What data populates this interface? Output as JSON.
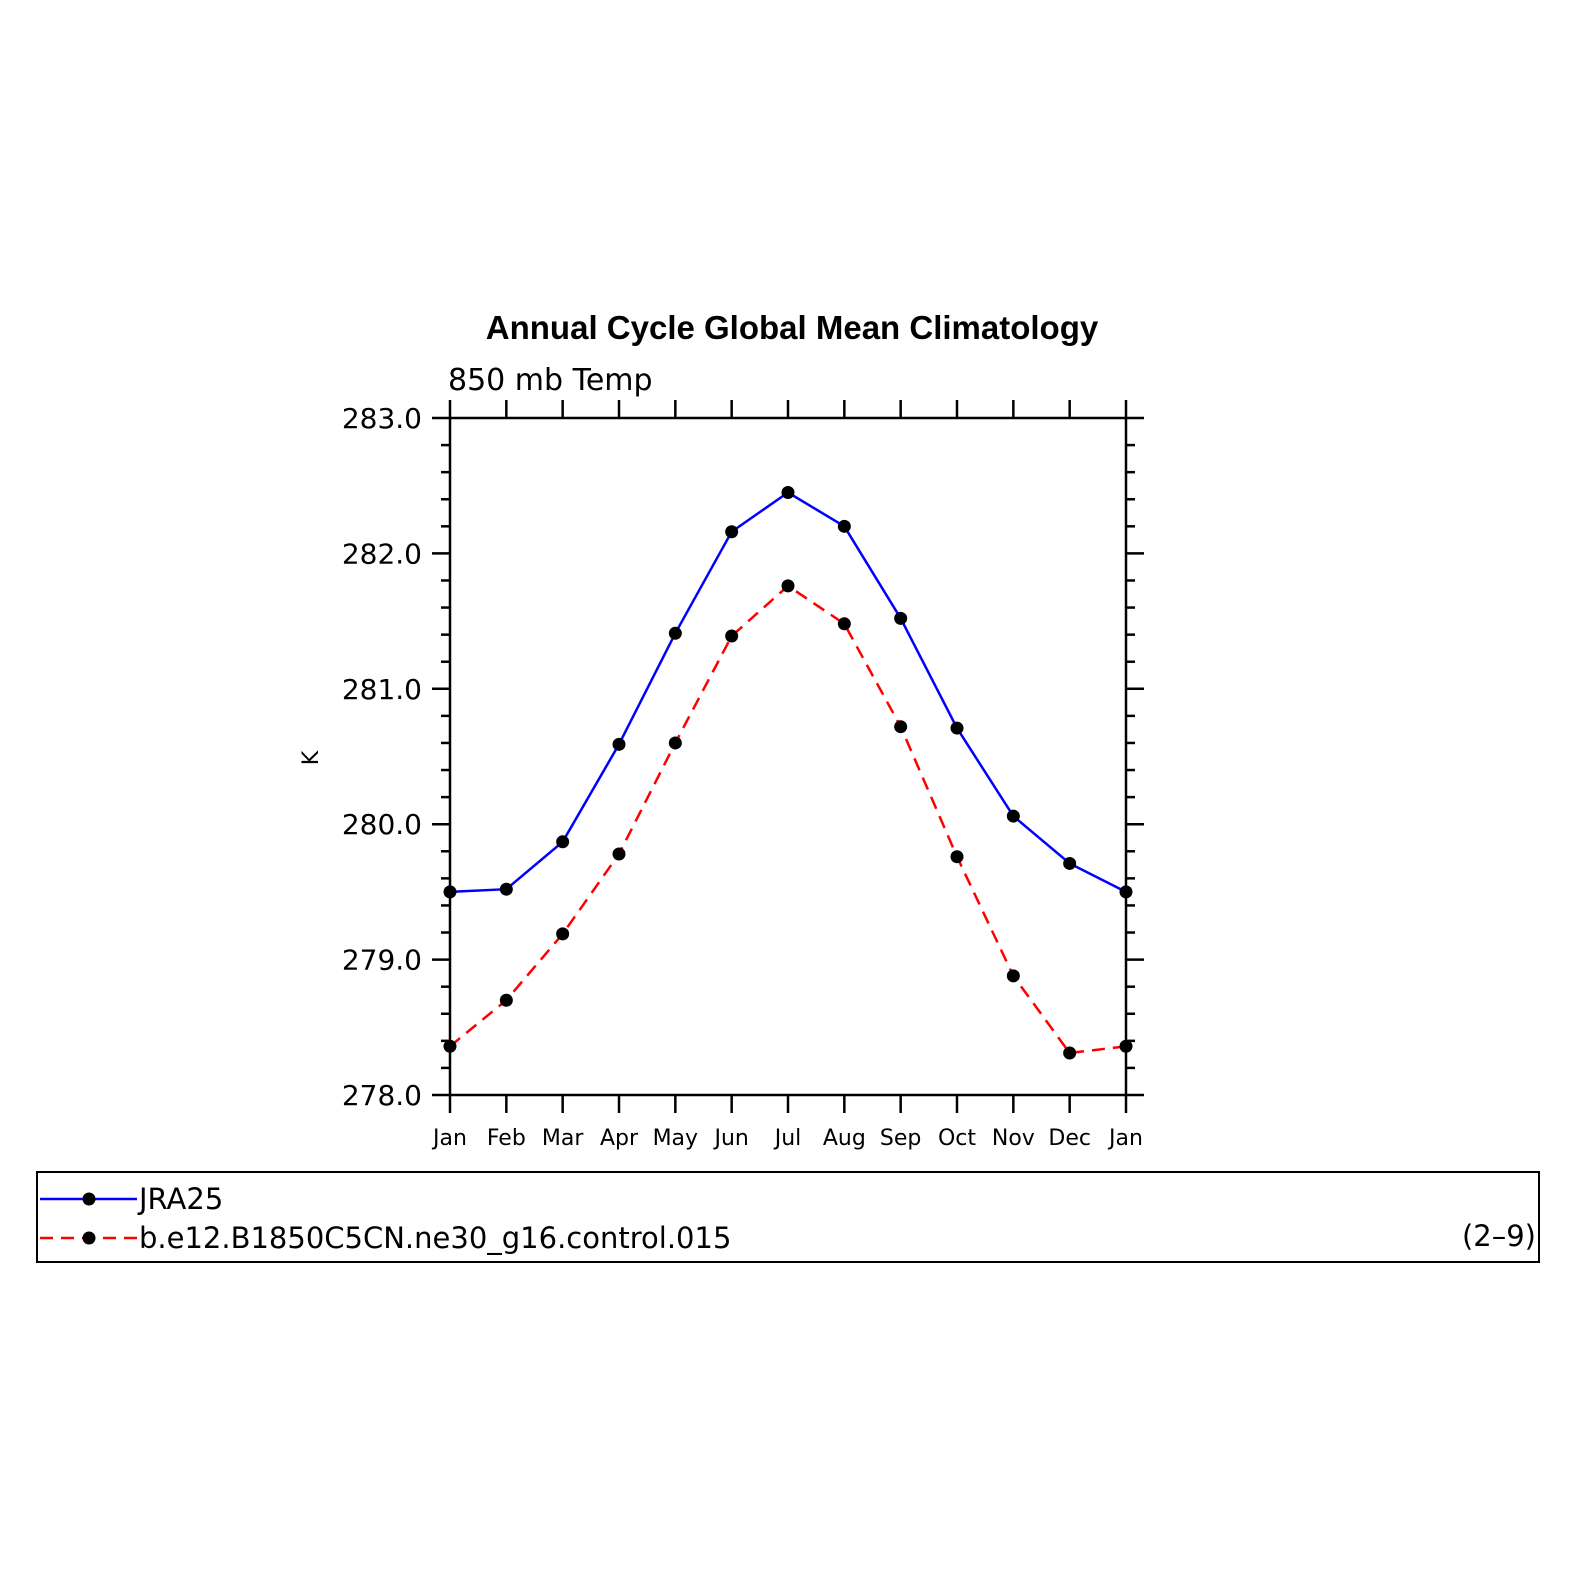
{
  "chart_data": {
    "type": "line",
    "title": "Annual Cycle Global Mean Climatology",
    "subtitle": "850 mb Temp",
    "xlabel": "",
    "ylabel": "K",
    "categories": [
      "Jan",
      "Feb",
      "Mar",
      "Apr",
      "May",
      "Jun",
      "Jul",
      "Aug",
      "Sep",
      "Oct",
      "Nov",
      "Dec",
      "Jan"
    ],
    "ylim": [
      278.0,
      283.0
    ],
    "yticks": [
      "278.0",
      "279.0",
      "280.0",
      "281.0",
      "282.0",
      "283.0"
    ],
    "grid": false,
    "legend_position": "bottom",
    "series": [
      {
        "name": "JRA25",
        "color": "#0000ff",
        "dash": "solid",
        "values": [
          279.5,
          279.52,
          279.87,
          280.59,
          281.41,
          282.16,
          282.45,
          282.2,
          281.52,
          280.71,
          280.06,
          279.71,
          279.5
        ]
      },
      {
        "name": "b.e12.B1850C5CN.ne30_g16.control.015",
        "color": "#ff0000",
        "dash": "dashed",
        "values": [
          278.36,
          278.7,
          279.19,
          279.78,
          280.6,
          281.39,
          281.76,
          281.48,
          280.72,
          279.76,
          278.88,
          278.31,
          278.36
        ]
      }
    ],
    "annotation": "(2–9)"
  }
}
